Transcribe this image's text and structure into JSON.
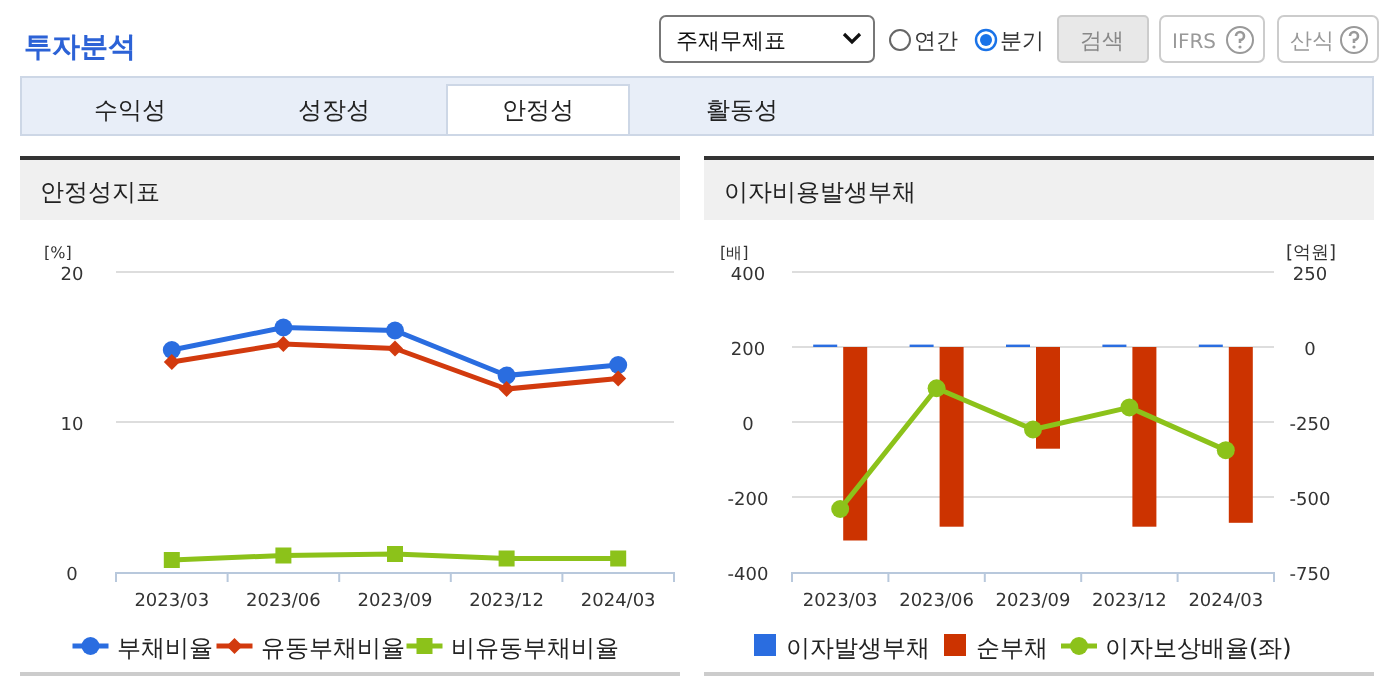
{
  "chart_data": [
    {
      "type": "other",
      "title": "투자분석",
      "annotations": [
        "주재무제표",
        "연간",
        "분기",
        "검색",
        "IFRS",
        "산식",
        "수익성",
        "성장성",
        "안정성",
        "활동성"
      ]
    },
    {
      "type": "line",
      "title": "안정성지표",
      "ylabel": "[%]",
      "categories": [
        "2023/03",
        "2023/06",
        "2023/09",
        "2023/12",
        "2024/03"
      ],
      "ylim": [
        0,
        20
      ],
      "yticks": [
        0,
        10,
        20
      ],
      "grid": "y",
      "legend": "bottom",
      "series": [
        {
          "name": "부채비율",
          "color": "#2a6de0",
          "marker": "circle",
          "values": [
            14.8,
            16.3,
            16.1,
            13.1,
            13.8
          ]
        },
        {
          "name": "유동부채비율",
          "color": "#d23a0e",
          "marker": "diamond",
          "values": [
            14.0,
            15.2,
            14.9,
            12.2,
            12.9
          ]
        },
        {
          "name": "비유동부채비율",
          "color": "#8cc21a",
          "marker": "square",
          "values": [
            0.8,
            1.1,
            1.2,
            0.9,
            0.9
          ]
        }
      ]
    },
    {
      "type": "bar",
      "title": "이자비용발생부채",
      "ylabel": "[배]",
      "y2label": "[억원]",
      "categories": [
        "2023/03",
        "2023/06",
        "2023/09",
        "2023/12",
        "2024/03"
      ],
      "ylim": [
        -400,
        400
      ],
      "yticks": [
        -400,
        -200,
        0,
        200,
        400
      ],
      "y2lim": [
        -750,
        250
      ],
      "y2ticks": [
        -750,
        -500,
        -250,
        0,
        250
      ],
      "grid": "y",
      "legend": "bottom",
      "series": [
        {
          "name": "이자발생부채",
          "color": "#2a6de0",
          "axis": "y2",
          "values": [
            8,
            8,
            8,
            8,
            8
          ]
        },
        {
          "name": "순부채",
          "color": "#cc3300",
          "axis": "y2",
          "values": [
            -645,
            -599,
            -339,
            -599,
            -586
          ]
        },
        {
          "name": "이자보상배율(좌)",
          "type": "line",
          "marker": "circle",
          "color": "#8cc21a",
          "axis": "y",
          "values": [
            -232,
            90,
            -20,
            39,
            -75
          ]
        }
      ]
    }
  ]
}
